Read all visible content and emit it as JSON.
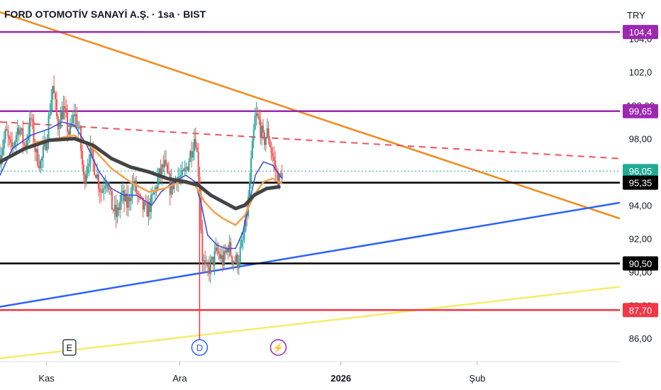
{
  "header": {
    "symbol_title": "FORD OTOMOTİV SANAYİ A.Ş. · 1sa · BIST",
    "currency": "TRY"
  },
  "colors": {
    "price_line": "#e53945",
    "ma_blue": "#3f51d9",
    "ma_orange": "#f5a04a",
    "ma_dark": "#444444",
    "candle_up": "#26a69a",
    "candle_down": "#ef5350",
    "trend_orange": "#ef8a1a",
    "trend_blue": "#2962ff",
    "trend_yellow": "#f5ec6a",
    "dashed_red": "#ef5360",
    "purple": "#9c27b0",
    "support_red": "#f23645",
    "last_price_green": "#22ab94"
  },
  "chart_data": {
    "type": "candlestick",
    "y_axis": {
      "ylim": [
        85.2,
        105.6
      ],
      "ticks": [
        "86,00",
        "88,00",
        "90,00",
        "92,00",
        "94,00",
        "96,00",
        "98,00",
        "100,00",
        "102,0",
        "104,0"
      ],
      "tick_values": [
        86,
        88,
        90,
        92,
        94,
        96,
        98,
        100,
        102,
        104
      ]
    },
    "x_axis": {
      "tick_labels": [
        "Kas",
        "Ara",
        "2026",
        "Şub"
      ],
      "tick_positions": [
        0.075,
        0.29,
        0.55,
        0.77
      ]
    },
    "horizontal_levels": [
      {
        "value": 104.4,
        "label": "104,4",
        "color": "#9c27b0",
        "style": "solid"
      },
      {
        "value": 99.65,
        "label": "99,65",
        "color": "#9c27b0",
        "style": "solid"
      },
      {
        "value": 96.05,
        "label": "96,05",
        "color": "#22ab94",
        "style": "dotted"
      },
      {
        "value": 95.35,
        "label": "95,35",
        "color": "#000000",
        "style": "solid"
      },
      {
        "value": 90.5,
        "label": "90,50",
        "color": "#000000",
        "style": "solid"
      },
      {
        "value": 87.7,
        "label": "87,70",
        "color": "#f23645",
        "style": "solid"
      }
    ],
    "trend_lines": [
      {
        "name": "descending-resistance",
        "color": "#ef8a1a",
        "style": "solid",
        "from": [
          0.0,
          105.6
        ],
        "to": [
          1.0,
          93.2
        ]
      },
      {
        "name": "dashed-resistance",
        "color": "#ef5360",
        "style": "dashed",
        "from": [
          0.0,
          99.0
        ],
        "to": [
          1.0,
          96.8
        ]
      },
      {
        "name": "ascending-support",
        "color": "#2962ff",
        "style": "solid",
        "from": [
          0.0,
          87.9
        ],
        "to": [
          1.0,
          94.15
        ]
      },
      {
        "name": "long-term-support",
        "color": "#f5ec6a",
        "style": "solid",
        "from": [
          0.0,
          84.8
        ],
        "to": [
          1.0,
          89.1
        ]
      }
    ],
    "vertical_marker": {
      "x": 0.322,
      "from": 85.2,
      "to": 95.3,
      "color": "#f23645"
    },
    "price_path": [
      [
        0.0,
        97.0
      ],
      [
        0.01,
        98.4
      ],
      [
        0.018,
        97.2
      ],
      [
        0.03,
        98.8
      ],
      [
        0.04,
        97.5
      ],
      [
        0.05,
        99.2
      ],
      [
        0.058,
        97.0
      ],
      [
        0.066,
        96.5
      ],
      [
        0.075,
        98.0
      ],
      [
        0.085,
        101.2
      ],
      [
        0.093,
        98.8
      ],
      [
        0.102,
        99.8
      ],
      [
        0.112,
        98.2
      ],
      [
        0.12,
        99.6
      ],
      [
        0.128,
        98.4
      ],
      [
        0.135,
        95.5
      ],
      [
        0.145,
        97.2
      ],
      [
        0.155,
        96.0
      ],
      [
        0.163,
        94.8
      ],
      [
        0.172,
        95.8
      ],
      [
        0.18,
        94.0
      ],
      [
        0.188,
        93.3
      ],
      [
        0.196,
        94.6
      ],
      [
        0.205,
        94.0
      ],
      [
        0.215,
        95.4
      ],
      [
        0.225,
        94.2
      ],
      [
        0.235,
        93.6
      ],
      [
        0.245,
        94.2
      ],
      [
        0.255,
        95.6
      ],
      [
        0.265,
        96.4
      ],
      [
        0.275,
        95.0
      ],
      [
        0.285,
        95.8
      ],
      [
        0.295,
        95.6
      ],
      [
        0.305,
        96.8
      ],
      [
        0.315,
        98.3
      ],
      [
        0.322,
        95.2
      ],
      [
        0.326,
        91.0
      ],
      [
        0.332,
        89.9
      ],
      [
        0.34,
        90.4
      ],
      [
        0.35,
        91.2
      ],
      [
        0.36,
        90.6
      ],
      [
        0.368,
        91.6
      ],
      [
        0.375,
        90.8
      ],
      [
        0.383,
        90.6
      ],
      [
        0.392,
        91.8
      ],
      [
        0.4,
        94.0
      ],
      [
        0.405,
        96.5
      ],
      [
        0.412,
        99.4
      ],
      [
        0.418,
        99.0
      ],
      [
        0.425,
        97.8
      ],
      [
        0.432,
        98.4
      ],
      [
        0.438,
        97.2
      ],
      [
        0.445,
        96.0
      ],
      [
        0.45,
        95.4
      ],
      [
        0.455,
        96.0
      ]
    ],
    "moving_averages": [
      {
        "name": "fast",
        "color": "#3f51d9",
        "values": [
          [
            0.0,
            95.8
          ],
          [
            0.02,
            97.4
          ],
          [
            0.05,
            98.2
          ],
          [
            0.08,
            98.6
          ],
          [
            0.1,
            99.0
          ],
          [
            0.12,
            98.8
          ],
          [
            0.14,
            97.6
          ],
          [
            0.16,
            96.0
          ],
          [
            0.18,
            95.0
          ],
          [
            0.2,
            94.6
          ],
          [
            0.22,
            94.6
          ],
          [
            0.245,
            94.0
          ],
          [
            0.26,
            94.8
          ],
          [
            0.28,
            95.4
          ],
          [
            0.3,
            95.8
          ],
          [
            0.315,
            95.4
          ],
          [
            0.325,
            94.0
          ],
          [
            0.335,
            92.2
          ],
          [
            0.35,
            91.6
          ],
          [
            0.365,
            91.4
          ],
          [
            0.38,
            91.4
          ],
          [
            0.392,
            92.4
          ],
          [
            0.4,
            93.8
          ],
          [
            0.412,
            95.8
          ],
          [
            0.425,
            96.6
          ],
          [
            0.44,
            96.4
          ],
          [
            0.455,
            95.6
          ]
        ]
      },
      {
        "name": "mid",
        "color": "#f5a04a",
        "values": [
          [
            0.0,
            96.6
          ],
          [
            0.03,
            97.2
          ],
          [
            0.06,
            97.8
          ],
          [
            0.09,
            98.0
          ],
          [
            0.12,
            98.2
          ],
          [
            0.15,
            97.4
          ],
          [
            0.18,
            96.2
          ],
          [
            0.21,
            95.4
          ],
          [
            0.24,
            94.8
          ],
          [
            0.265,
            95.0
          ],
          [
            0.29,
            95.4
          ],
          [
            0.315,
            95.2
          ],
          [
            0.33,
            94.2
          ],
          [
            0.345,
            93.6
          ],
          [
            0.36,
            93.2
          ],
          [
            0.38,
            92.8
          ],
          [
            0.395,
            93.4
          ],
          [
            0.41,
            94.6
          ],
          [
            0.425,
            95.4
          ],
          [
            0.44,
            95.6
          ],
          [
            0.455,
            95.3
          ]
        ]
      },
      {
        "name": "slow",
        "color": "#444444",
        "values": [
          [
            0.0,
            96.6
          ],
          [
            0.04,
            97.4
          ],
          [
            0.08,
            97.9
          ],
          [
            0.12,
            98.0
          ],
          [
            0.15,
            97.6
          ],
          [
            0.18,
            96.8
          ],
          [
            0.21,
            96.3
          ],
          [
            0.24,
            96.0
          ],
          [
            0.27,
            95.6
          ],
          [
            0.3,
            95.4
          ],
          [
            0.32,
            95.2
          ],
          [
            0.34,
            94.6
          ],
          [
            0.36,
            94.2
          ],
          [
            0.38,
            93.8
          ],
          [
            0.395,
            94.0
          ],
          [
            0.41,
            94.6
          ],
          [
            0.43,
            95.0
          ],
          [
            0.45,
            95.1
          ]
        ]
      }
    ],
    "markers": [
      {
        "name": "earnings",
        "label": "E",
        "x": 0.112
      },
      {
        "name": "dividend",
        "label": "D",
        "x": 0.322
      },
      {
        "name": "event",
        "label": "⚡",
        "x": 0.449
      }
    ]
  }
}
